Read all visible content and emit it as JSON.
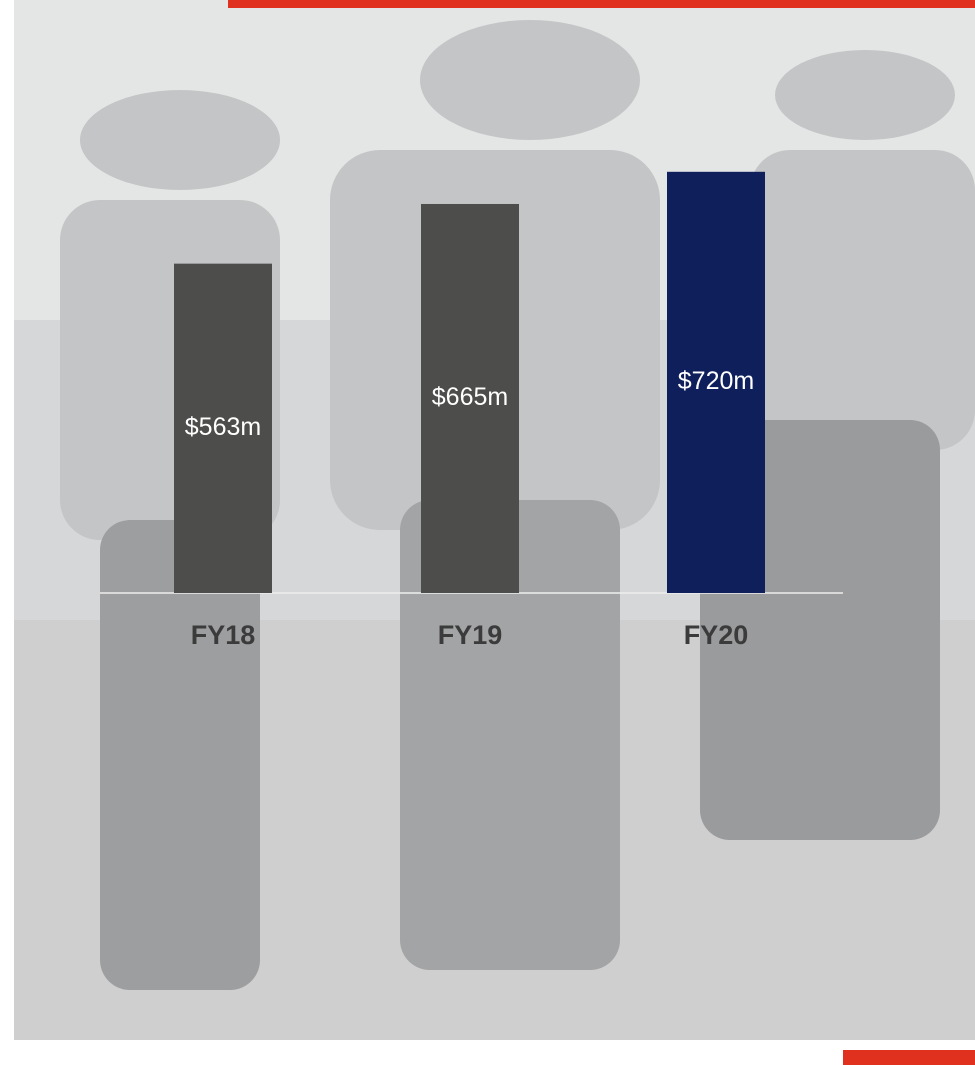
{
  "chart_data": {
    "type": "bar",
    "categories": [
      "FY18",
      "FY19",
      "FY20"
    ],
    "values": [
      563,
      665,
      720
    ],
    "value_labels": [
      "$563m",
      "$665m",
      "$720m"
    ],
    "colors": [
      "#4d4d4b",
      "#4d4d4b",
      "#0f1f5c"
    ]
  }
}
